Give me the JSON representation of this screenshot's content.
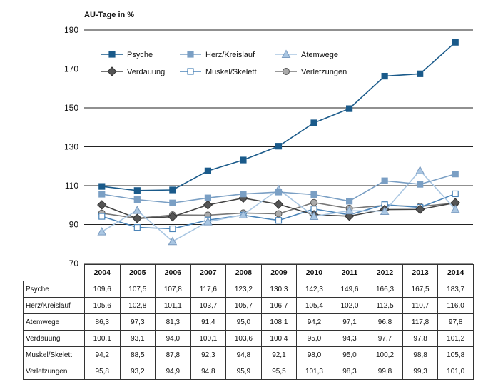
{
  "chart_data": {
    "type": "line",
    "ylabel": "AU-Tage in %",
    "ylim": [
      70,
      190
    ],
    "yticks": [
      70,
      90,
      110,
      130,
      150,
      170,
      190
    ],
    "grid": true,
    "legend_position": "top-left",
    "categories": [
      "2004",
      "2005",
      "2006",
      "2007",
      "2008",
      "2009",
      "2010",
      "2011",
      "2012",
      "2013",
      "2014"
    ],
    "series": [
      {
        "name": "Psyche",
        "values": [
          109.6,
          107.5,
          107.8,
          117.6,
          123.2,
          130.3,
          142.3,
          149.6,
          166.3,
          167.5,
          183.7
        ],
        "color": "#1a5a8a",
        "marker": "square",
        "marker_fill": "#1a5a8a"
      },
      {
        "name": "Herz/Kreislauf",
        "values": [
          105.6,
          102.8,
          101.1,
          103.7,
          105.7,
          106.7,
          105.4,
          102.0,
          112.5,
          110.7,
          116.0
        ],
        "color": "#7a9fc4",
        "marker": "square",
        "marker_fill": "#7a9fc4"
      },
      {
        "name": "Atemwege",
        "values": [
          86.3,
          97.3,
          81.3,
          91.4,
          95.0,
          108.1,
          94.2,
          97.1,
          96.8,
          117.8,
          97.8
        ],
        "color": "#a9c6e2",
        "marker": "triangle",
        "marker_fill": "#a9c6e2"
      },
      {
        "name": "Verdauung",
        "values": [
          100.1,
          93.1,
          94.0,
          100.1,
          103.6,
          100.4,
          95.0,
          94.3,
          97.7,
          97.8,
          101.2
        ],
        "color": "#444444",
        "marker": "diamond",
        "marker_fill": "#555555"
      },
      {
        "name": "Muskel/Skelett",
        "values": [
          94.2,
          88.5,
          87.8,
          92.3,
          94.8,
          92.1,
          98.0,
          95.0,
          100.2,
          98.8,
          105.8
        ],
        "color": "#4b84b8",
        "marker": "square",
        "marker_fill": "#ffffff"
      },
      {
        "name": "Verletzungen",
        "values": [
          95.8,
          93.2,
          94.9,
          94.8,
          95.9,
          95.5,
          101.3,
          98.3,
          99.8,
          99.3,
          101.0
        ],
        "color": "#777777",
        "marker": "circle",
        "marker_fill": "#aaaaaa"
      }
    ],
    "table": {
      "rows": [
        {
          "label": "Psyche",
          "cells": [
            "109,6",
            "107,5",
            "107,8",
            "117,6",
            "123,2",
            "130,3",
            "142,3",
            "149,6",
            "166,3",
            "167,5",
            "183,7"
          ]
        },
        {
          "label": "Herz/Kreislauf",
          "cells": [
            "105,6",
            "102,8",
            "101,1",
            "103,7",
            "105,7",
            "106,7",
            "105,4",
            "102,0",
            "112,5",
            "110,7",
            "116,0"
          ]
        },
        {
          "label": "Atemwege",
          "cells": [
            "86,3",
            "97,3",
            "81,3",
            "91,4",
            "95,0",
            "108,1",
            "94,2",
            "97,1",
            "96,8",
            "117,8",
            "97,8"
          ]
        },
        {
          "label": "Verdauung",
          "cells": [
            "100,1",
            "93,1",
            "94,0",
            "100,1",
            "103,6",
            "100,4",
            "95,0",
            "94,3",
            "97,7",
            "97,8",
            "101,2"
          ]
        },
        {
          "label": "Muskel/Skelett",
          "cells": [
            "94,2",
            "88,5",
            "87,8",
            "92,3",
            "94,8",
            "92,1",
            "98,0",
            "95,0",
            "100,2",
            "98,8",
            "105,8"
          ]
        },
        {
          "label": "Verletzungen",
          "cells": [
            "95,8",
            "93,2",
            "94,9",
            "94,8",
            "95,9",
            "95,5",
            "101,3",
            "98,3",
            "99,8",
            "99,3",
            "101,0"
          ]
        }
      ]
    }
  }
}
